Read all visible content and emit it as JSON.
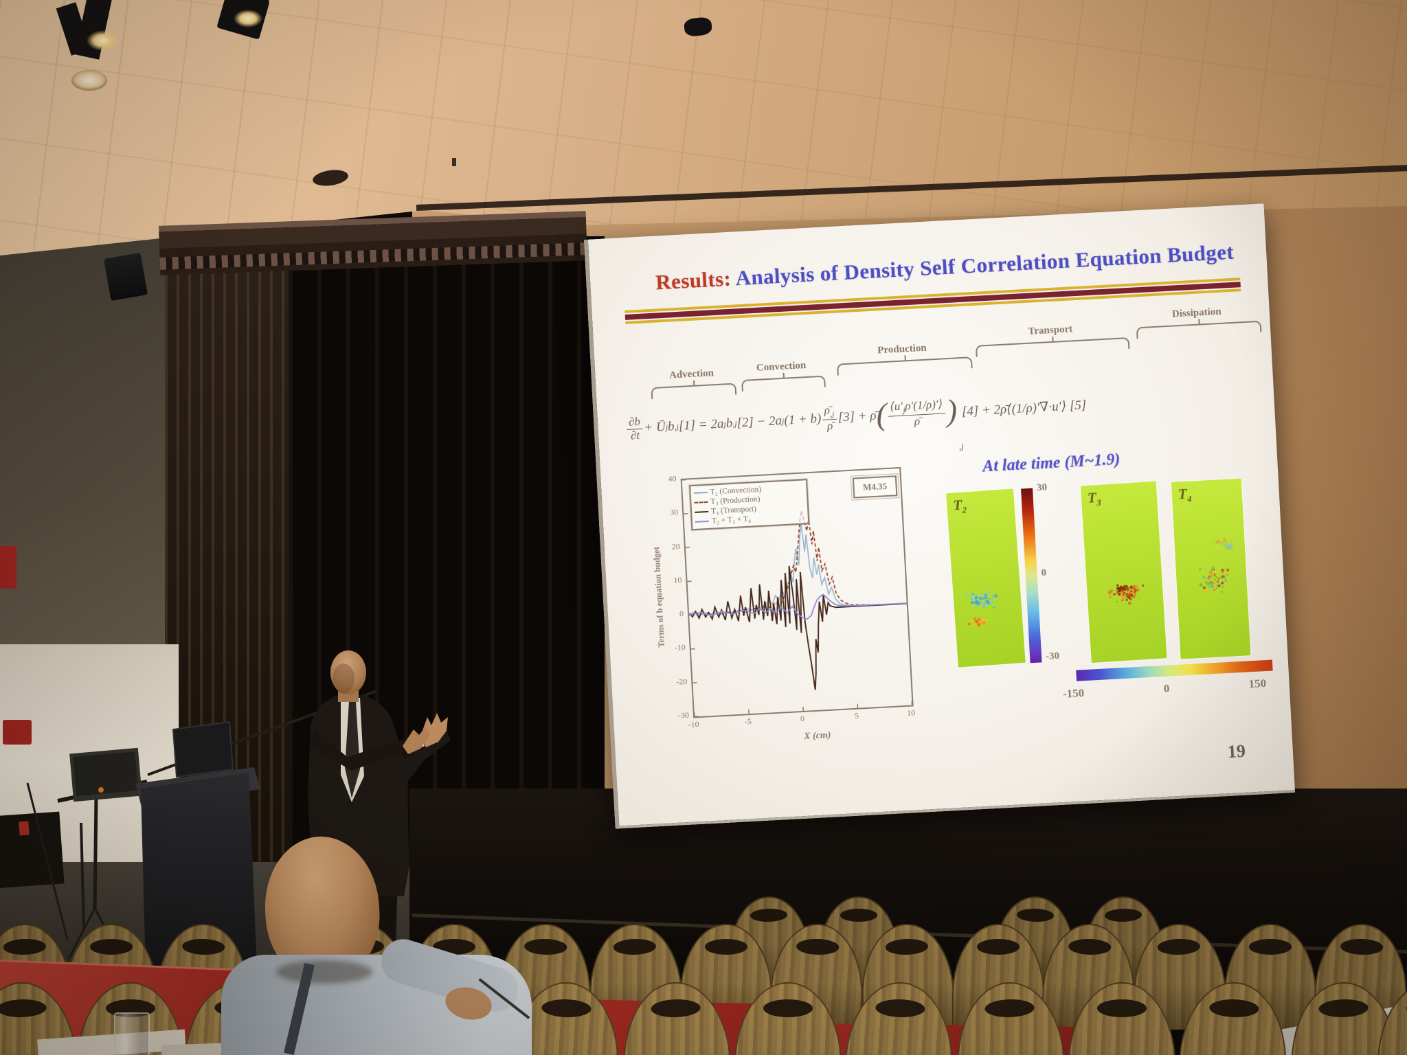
{
  "slide": {
    "title_prefix": "Results:",
    "title_text": " Analysis of Density Self Correlation Equation Budget",
    "term_labels": [
      "Advection",
      "Convection",
      "Production",
      "Transport",
      "Dissipation"
    ],
    "equation_parts": [
      {
        "t": "frac",
        "num": [
          {
            "t": "txt",
            "s": "∂b"
          }
        ],
        "den": [
          {
            "t": "txt",
            "s": "∂t"
          }
        ]
      },
      {
        "t": "txt",
        "s": " + Ū"
      },
      {
        "t": "sub",
        "s": "j"
      },
      {
        "t": "txt",
        "s": "b"
      },
      {
        "t": "sub",
        "s": ",j"
      },
      {
        "t": "txt",
        "s": " [1] = 2a"
      },
      {
        "t": "sub",
        "s": "j"
      },
      {
        "t": "txt",
        "s": "b"
      },
      {
        "t": "sub",
        "s": ",j"
      },
      {
        "t": "txt",
        "s": " [2] − 2a"
      },
      {
        "t": "sub",
        "s": "j"
      },
      {
        "t": "txt",
        "s": "(1 + b)"
      },
      {
        "t": "frac",
        "num": [
          {
            "t": "txt",
            "s": "ρ̄"
          },
          {
            "t": "sub",
            "s": ",j"
          }
        ],
        "den": [
          {
            "t": "txt",
            "s": "ρ̄"
          }
        ]
      },
      {
        "t": "txt",
        "s": " [3] + ρ̄"
      },
      {
        "t": "big",
        "s": "("
      },
      {
        "t": "frac",
        "num": [
          {
            "t": "txt",
            "s": "⟨u′"
          },
          {
            "t": "sub",
            "s": "j"
          },
          {
            "t": "txt",
            "s": "ρ′(1/ρ)′⟩"
          }
        ],
        "den": [
          {
            "t": "txt",
            "s": "ρ̄"
          }
        ]
      },
      {
        "t": "big",
        "s": ")"
      },
      {
        "t": "psub",
        "s": ",j"
      },
      {
        "t": "txt",
        "s": " [4] + 2ρ̄⟨(1/ρ)′∇·u′⟩ [5]"
      }
    ],
    "late_time_caption": "At late time (M~1.9)",
    "panel_labels": [
      {
        "base": "T",
        "sub": "2"
      },
      {
        "base": "T",
        "sub": "3"
      },
      {
        "base": "T",
        "sub": "4"
      }
    ],
    "vertical_colorbar_ticks": [
      "30",
      "0",
      "-30"
    ],
    "horizontal_colorbar_ticks": [
      "-150",
      "0",
      "150"
    ],
    "page_number": "19",
    "colors": {
      "title_prefix": "#c03a20",
      "title_text": "#4d4ec2",
      "caption": "#5553c5",
      "divider_gold": "#d8b332",
      "divider_maroon": "#7a2230",
      "panel_green": "#b4dc2e"
    }
  },
  "chart_data": {
    "type": "line",
    "title": "",
    "xlabel": "X (cm)",
    "ylabel": "Terms of b equation budget",
    "xlim": [
      -10,
      10
    ],
    "ylim": [
      -30,
      40
    ],
    "xticks": [
      -10,
      -5,
      0,
      5,
      10
    ],
    "yticks": [
      40,
      30,
      20,
      10,
      0,
      -10,
      -20,
      -30
    ],
    "annotation": "M4.35",
    "grid": false,
    "legend_position": "upper-left",
    "legend": [
      {
        "label": "T₂ (Convection)",
        "color": "#8fa8c8",
        "dash": false
      },
      {
        "label": "T₃ (Production)",
        "color": "#99422f",
        "dash": true
      },
      {
        "label": "T₄ (Transport)",
        "color": "#44281c",
        "dash": false
      },
      {
        "label": "T₂ + T₃ + T₄",
        "color": "#8f8fd6",
        "dash": false
      }
    ],
    "series": [
      {
        "name": "T2_convection",
        "color": "#9db8cc",
        "dash": false,
        "width": 1.7,
        "points": [
          [
            -10,
            0.3
          ],
          [
            -9.5,
            0.8
          ],
          [
            -9,
            -0.2
          ],
          [
            -8.5,
            0.5
          ],
          [
            -8,
            0
          ],
          [
            -7.5,
            0.7
          ],
          [
            -7,
            -0.3
          ],
          [
            -6.5,
            0.4
          ],
          [
            -6,
            0
          ],
          [
            -5.5,
            0.6
          ],
          [
            -5,
            0.2
          ],
          [
            -4.5,
            1
          ],
          [
            -4,
            0.4
          ],
          [
            -3.5,
            1.2
          ],
          [
            -3,
            1.8
          ],
          [
            -2.6,
            3
          ],
          [
            -2.3,
            2
          ],
          [
            -2,
            4.5
          ],
          [
            -1.7,
            3
          ],
          [
            -1.4,
            6
          ],
          [
            -1.1,
            4
          ],
          [
            -0.9,
            8
          ],
          [
            -0.7,
            6
          ],
          [
            -0.5,
            11
          ],
          [
            -0.3,
            8
          ],
          [
            -0.1,
            14
          ],
          [
            0.1,
            18
          ],
          [
            0.3,
            13
          ],
          [
            0.5,
            21
          ],
          [
            0.7,
            25
          ],
          [
            0.9,
            17
          ],
          [
            1.1,
            22
          ],
          [
            1.3,
            12
          ],
          [
            1.5,
            9
          ],
          [
            1.7,
            15
          ],
          [
            1.9,
            10
          ],
          [
            2.1,
            13
          ],
          [
            2.3,
            7
          ],
          [
            2.6,
            9
          ],
          [
            2.9,
            4
          ],
          [
            3.2,
            6
          ],
          [
            3.5,
            2.5
          ],
          [
            3.9,
            1
          ],
          [
            4.4,
            0.5
          ],
          [
            5,
            0.3
          ],
          [
            6,
            0.2
          ],
          [
            8,
            0.1
          ],
          [
            10,
            0.1
          ]
        ]
      },
      {
        "name": "T3_production",
        "color": "#99422f",
        "dash": true,
        "width": 1.7,
        "points": [
          [
            -10,
            0.2
          ],
          [
            -9,
            0.5
          ],
          [
            -8,
            -0.3
          ],
          [
            -7,
            0.4
          ],
          [
            -6,
            0.1
          ],
          [
            -5,
            0.8
          ],
          [
            -4.5,
            0.2
          ],
          [
            -4,
            1
          ],
          [
            -3.5,
            0.5
          ],
          [
            -3,
            1.5
          ],
          [
            -2.5,
            1
          ],
          [
            -2,
            2.5
          ],
          [
            -1.6,
            1.5
          ],
          [
            -1.2,
            4
          ],
          [
            -0.8,
            7
          ],
          [
            -0.5,
            10
          ],
          [
            -0.2,
            13
          ],
          [
            0,
            11
          ],
          [
            0.2,
            16
          ],
          [
            0.4,
            21
          ],
          [
            0.6,
            26
          ],
          [
            0.8,
            29
          ],
          [
            1,
            26
          ],
          [
            1.2,
            23
          ],
          [
            1.4,
            27
          ],
          [
            1.6,
            19
          ],
          [
            1.8,
            23
          ],
          [
            2,
            14
          ],
          [
            2.2,
            18
          ],
          [
            2.4,
            11
          ],
          [
            2.7,
            13
          ],
          [
            3,
            7
          ],
          [
            3.3,
            9
          ],
          [
            3.6,
            4
          ],
          [
            4,
            2
          ],
          [
            4.5,
            1
          ],
          [
            5,
            0.5
          ],
          [
            7,
            0.2
          ],
          [
            10,
            0.1
          ]
        ]
      },
      {
        "name": "T4_transport",
        "color": "#44281c",
        "dash": false,
        "width": 1.9,
        "points": [
          [
            -10,
            0.5
          ],
          [
            -9.7,
            -0.5
          ],
          [
            -9.4,
            1
          ],
          [
            -9.1,
            -1
          ],
          [
            -8.8,
            1.5
          ],
          [
            -8.5,
            -0.8
          ],
          [
            -8.2,
            0.5
          ],
          [
            -7.9,
            -1.5
          ],
          [
            -7.6,
            2
          ],
          [
            -7.3,
            -1
          ],
          [
            -7,
            1
          ],
          [
            -6.7,
            -2
          ],
          [
            -6.4,
            3.5
          ],
          [
            -6.1,
            -1.5
          ],
          [
            -5.8,
            1
          ],
          [
            -5.5,
            -2.5
          ],
          [
            -5.2,
            5
          ],
          [
            -5,
            -1
          ],
          [
            -4.8,
            1.5
          ],
          [
            -4.5,
            -3
          ],
          [
            -4.2,
            7
          ],
          [
            -4,
            -2
          ],
          [
            -3.8,
            2
          ],
          [
            -3.6,
            -1
          ],
          [
            -3.4,
            8
          ],
          [
            -3.2,
            -2.5
          ],
          [
            -3,
            3
          ],
          [
            -2.8,
            -1.5
          ],
          [
            -2.6,
            6
          ],
          [
            -2.4,
            -3
          ],
          [
            -2.2,
            2
          ],
          [
            -2,
            -4
          ],
          [
            -1.8,
            4
          ],
          [
            -1.6,
            -3
          ],
          [
            -1.4,
            9
          ],
          [
            -1.2,
            -5
          ],
          [
            -1,
            11
          ],
          [
            -0.8,
            -4
          ],
          [
            -0.6,
            13
          ],
          [
            -0.4,
            5
          ],
          [
            -0.2,
            -6
          ],
          [
            0,
            9
          ],
          [
            0.2,
            -7
          ],
          [
            0.4,
            11
          ],
          [
            0.6,
            -4
          ],
          [
            0.8,
            -11
          ],
          [
            1,
            -17
          ],
          [
            1.2,
            -24
          ],
          [
            1.35,
            -19
          ],
          [
            1.5,
            -9
          ],
          [
            1.65,
            -13
          ],
          [
            1.8,
            -5
          ],
          [
            2,
            2
          ],
          [
            2.2,
            -4
          ],
          [
            2.4,
            4
          ],
          [
            2.6,
            -2
          ],
          [
            2.8,
            1.5
          ],
          [
            3,
            0.5
          ],
          [
            3.5,
            0
          ],
          [
            4,
            0
          ],
          [
            10,
            0
          ]
        ]
      },
      {
        "name": "T2_T3_T4_sum",
        "color": "#8f8fd6",
        "dash": false,
        "width": 1.8,
        "points": [
          [
            -10,
            0.3
          ],
          [
            -9,
            0.6
          ],
          [
            -8,
            -0.4
          ],
          [
            -7,
            0.5
          ],
          [
            -6,
            -0.3
          ],
          [
            -5,
            0.6
          ],
          [
            -4,
            -0.5
          ],
          [
            -3.5,
            0.8
          ],
          [
            -3,
            -0.4
          ],
          [
            -2.5,
            0.6
          ],
          [
            -2,
            -0.6
          ],
          [
            -1.5,
            0.8
          ],
          [
            -1,
            -0.8
          ],
          [
            -0.5,
            1
          ],
          [
            0,
            -1.5
          ],
          [
            0.4,
            -2.5
          ],
          [
            0.8,
            -3
          ],
          [
            1.2,
            -2
          ],
          [
            1.5,
            0.5
          ],
          [
            1.8,
            2.5
          ],
          [
            2.1,
            3.5
          ],
          [
            2.4,
            4
          ],
          [
            2.7,
            3
          ],
          [
            3,
            2
          ],
          [
            3.4,
            1
          ],
          [
            3.8,
            0.5
          ],
          [
            4.5,
            0.3
          ],
          [
            6,
            0.2
          ],
          [
            10,
            0.1
          ]
        ]
      }
    ]
  }
}
